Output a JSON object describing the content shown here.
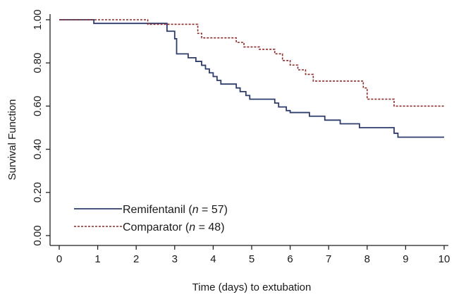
{
  "chart_data": {
    "type": "line",
    "xlabel": "Time (days) to extubation",
    "ylabel": "Survival Function",
    "xlim": [
      0,
      10
    ],
    "ylim": [
      0,
      1
    ],
    "x_ticks": [
      "0",
      "1",
      "2",
      "3",
      "4",
      "5",
      "6",
      "7",
      "8",
      "9",
      "10"
    ],
    "y_ticks": [
      "0.00",
      "0.20",
      "0.40",
      "0.60",
      "0.80",
      "1.00"
    ],
    "grid": false,
    "legend_position": "bottom-left",
    "series": [
      {
        "name": "Remifentanil",
        "n": "57",
        "color": "#2e3c6b",
        "style": "solid",
        "steps": [
          [
            0,
            1.0
          ],
          [
            0.9,
            0.983
          ],
          [
            2.8,
            0.947
          ],
          [
            3.0,
            0.912
          ],
          [
            3.05,
            0.842
          ],
          [
            3.35,
            0.824
          ],
          [
            3.55,
            0.807
          ],
          [
            3.7,
            0.789
          ],
          [
            3.8,
            0.772
          ],
          [
            3.9,
            0.754
          ],
          [
            4.0,
            0.737
          ],
          [
            4.1,
            0.719
          ],
          [
            4.2,
            0.702
          ],
          [
            4.6,
            0.684
          ],
          [
            4.7,
            0.667
          ],
          [
            4.85,
            0.649
          ],
          [
            4.95,
            0.632
          ],
          [
            5.6,
            0.614
          ],
          [
            5.7,
            0.596
          ],
          [
            5.9,
            0.579
          ],
          [
            6.0,
            0.57
          ],
          [
            6.5,
            0.553
          ],
          [
            6.9,
            0.535
          ],
          [
            7.3,
            0.518
          ],
          [
            7.8,
            0.5
          ],
          [
            8.7,
            0.474
          ],
          [
            8.8,
            0.456
          ]
        ],
        "end_x": 10
      },
      {
        "name": "Comparator",
        "n": "48",
        "color": "#8b2a2a",
        "style": "dashed",
        "steps": [
          [
            0,
            1.0
          ],
          [
            2.3,
            0.979
          ],
          [
            3.6,
            0.937
          ],
          [
            3.7,
            0.916
          ],
          [
            4.6,
            0.895
          ],
          [
            4.8,
            0.874
          ],
          [
            5.2,
            0.863
          ],
          [
            5.6,
            0.842
          ],
          [
            5.8,
            0.811
          ],
          [
            6.0,
            0.79
          ],
          [
            6.2,
            0.768
          ],
          [
            6.4,
            0.747
          ],
          [
            6.6,
            0.716
          ],
          [
            7.9,
            0.684
          ],
          [
            8.0,
            0.632
          ],
          [
            8.7,
            0.6
          ]
        ],
        "end_x": 10
      }
    ],
    "legend": [
      {
        "label": "Remifentanil (",
        "italic": "n",
        "rest": " = 57)"
      },
      {
        "label": "Comparator (",
        "italic": "n",
        "rest": " = 48)"
      }
    ]
  }
}
